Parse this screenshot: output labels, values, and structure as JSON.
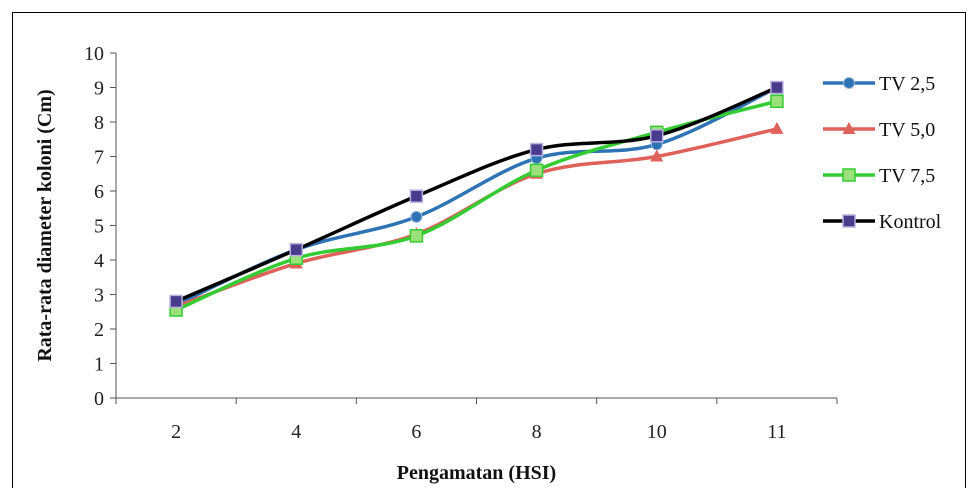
{
  "chart_data": {
    "type": "line",
    "title": "",
    "xlabel": "Pengamatan (HSI)",
    "ylabel": "Rata-rata diameter koloni (Cm)",
    "categories": [
      "2",
      "4",
      "6",
      "8",
      "10",
      "11"
    ],
    "ylim": [
      0,
      10
    ],
    "yticks": [
      0,
      1,
      2,
      3,
      4,
      5,
      6,
      7,
      8,
      9,
      10
    ],
    "grid": false,
    "legend_position": "right",
    "series": [
      {
        "name": "TV 2,5",
        "values": [
          2.7,
          4.3,
          5.25,
          6.95,
          7.35,
          9.0
        ],
        "color": "#2e74b5",
        "marker": "circle"
      },
      {
        "name": "TV 5,0",
        "values": [
          2.65,
          3.9,
          4.75,
          6.5,
          7.0,
          7.8
        ],
        "color": "#e0605a",
        "marker": "triangle"
      },
      {
        "name": "TV 7,5",
        "values": [
          2.55,
          4.05,
          4.7,
          6.6,
          7.7,
          8.6
        ],
        "color": "#33cc33",
        "marker": "square"
      },
      {
        "name": "Kontrol",
        "values": [
          2.8,
          4.3,
          5.85,
          7.2,
          7.6,
          9.0
        ],
        "color": "#000000",
        "marker": "square"
      }
    ]
  }
}
